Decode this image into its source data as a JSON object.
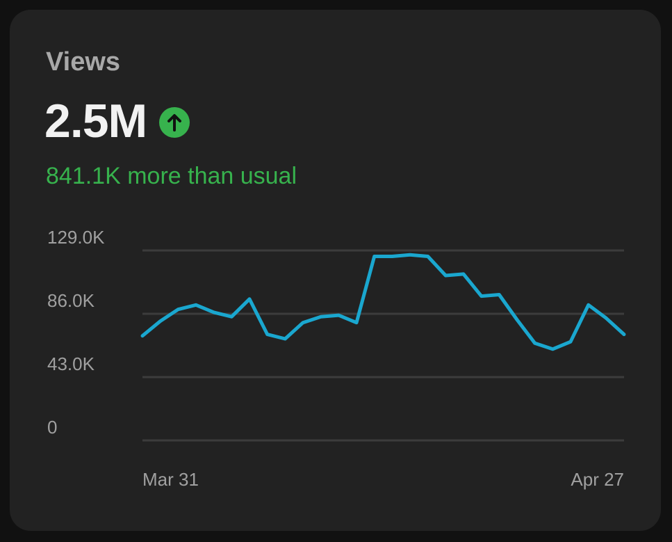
{
  "card": {
    "title": "Views",
    "value": "2.5M",
    "trend_icon": "arrow-up-icon",
    "comparison": "841.1K more than usual"
  },
  "colors": {
    "background": "#222222",
    "line": "#1aa7cf",
    "positive": "#37b24d",
    "grid": "#3c3c3c"
  },
  "chart_data": {
    "type": "line",
    "title": "",
    "xlabel": "",
    "ylabel": "",
    "ylim": [
      0,
      129000
    ],
    "yticks": [
      0,
      43000,
      86000,
      129000
    ],
    "ytick_labels": [
      "0",
      "43.0K",
      "86.0K",
      "129.0K"
    ],
    "xtick_labels": [
      "Mar 31",
      "Apr 27"
    ],
    "grid": true,
    "series": [
      {
        "values": [
          71000,
          81000,
          89000,
          92000,
          87000,
          84000,
          96000,
          72000,
          69000,
          80000,
          84000,
          85000,
          80000,
          125000,
          125000,
          126000,
          125000,
          112000,
          113000,
          98000,
          99000,
          82000,
          66000,
          62000,
          67000,
          92000,
          83000,
          72000
        ]
      }
    ]
  }
}
